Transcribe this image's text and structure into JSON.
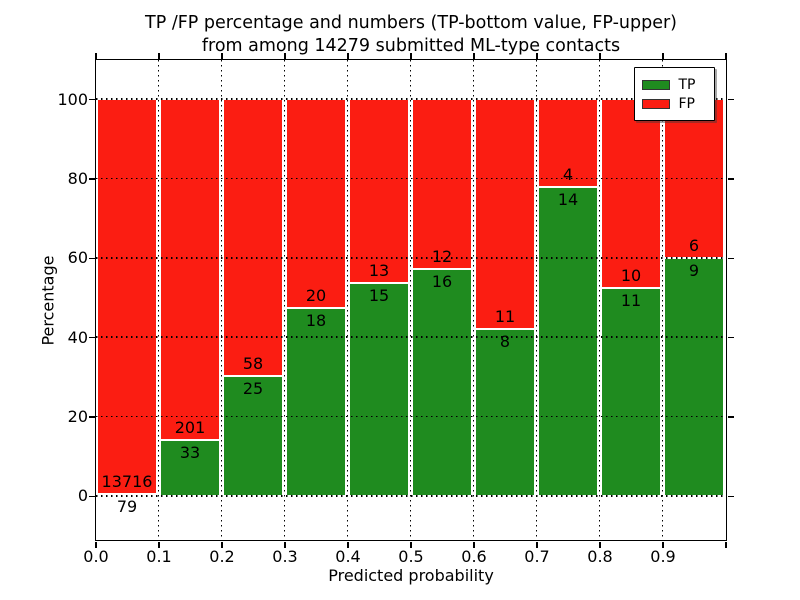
{
  "title": {
    "line1": "TP /FP percentage and numbers (TP-bottom value, FP-upper)",
    "line2": "from among 14279 submitted ML-type contacts"
  },
  "axes": {
    "ylabel": "Percentage",
    "xlabel": "Predicted probability",
    "ytick_labels": [
      "0",
      "20",
      "40",
      "60",
      "80",
      "100"
    ],
    "ytick_values": [
      0,
      20,
      40,
      60,
      80,
      100
    ],
    "xtick_labels": [
      "0.0",
      "0.1",
      "0.2",
      "0.3",
      "0.4",
      "0.5",
      "0.6",
      "0.7",
      "0.8",
      "0.9"
    ],
    "xtick_values": [
      0.0,
      0.1,
      0.2,
      0.3,
      0.4,
      0.5,
      0.6,
      0.7,
      0.8,
      0.9
    ],
    "ylim": [
      -11,
      110
    ],
    "xlim": [
      0.0,
      1.0
    ]
  },
  "legend": {
    "position": "upper right",
    "items": [
      {
        "label": "TP",
        "color": "#1f8b1f"
      },
      {
        "label": "FP",
        "color": "#fb1d12"
      }
    ]
  },
  "chart_data": {
    "type": "bar",
    "stacked": true,
    "normalized_to_percent": true,
    "title": "TP /FP percentage and numbers (TP-bottom value, FP-upper) from among 14279 submitted ML-type contacts",
    "xlabel": "Predicted probability",
    "ylabel": "Percentage",
    "total_contacts": 14279,
    "bin_edges": [
      0.0,
      0.1,
      0.2,
      0.3,
      0.4,
      0.5,
      0.6,
      0.7,
      0.8,
      0.9,
      1.0
    ],
    "categories": [
      "0.0-0.1",
      "0.1-0.2",
      "0.2-0.3",
      "0.3-0.4",
      "0.4-0.5",
      "0.5-0.6",
      "0.6-0.7",
      "0.7-0.8",
      "0.8-0.9",
      "0.9-1.0"
    ],
    "series": [
      {
        "name": "TP",
        "color": "#1f8b1f",
        "counts": [
          79,
          33,
          25,
          18,
          15,
          16,
          8,
          14,
          11,
          9
        ],
        "percent": [
          0.57,
          14.1,
          30.12,
          47.37,
          53.57,
          57.14,
          42.11,
          77.78,
          52.38,
          60.0
        ]
      },
      {
        "name": "FP",
        "color": "#fb1d12",
        "counts": [
          13716,
          201,
          58,
          20,
          13,
          12,
          11,
          4,
          10,
          6
        ],
        "percent": [
          99.43,
          85.9,
          69.88,
          52.63,
          46.43,
          42.86,
          57.89,
          22.22,
          47.62,
          40.0
        ]
      }
    ],
    "grid": "dotted black, horizontal at 0/20/40/60/80/100 and vertical at each 0.1",
    "ylim": [
      -11,
      110
    ],
    "legend_position": "upper right",
    "label_convention": "TP count printed below segment boundary, FP count printed above it"
  }
}
